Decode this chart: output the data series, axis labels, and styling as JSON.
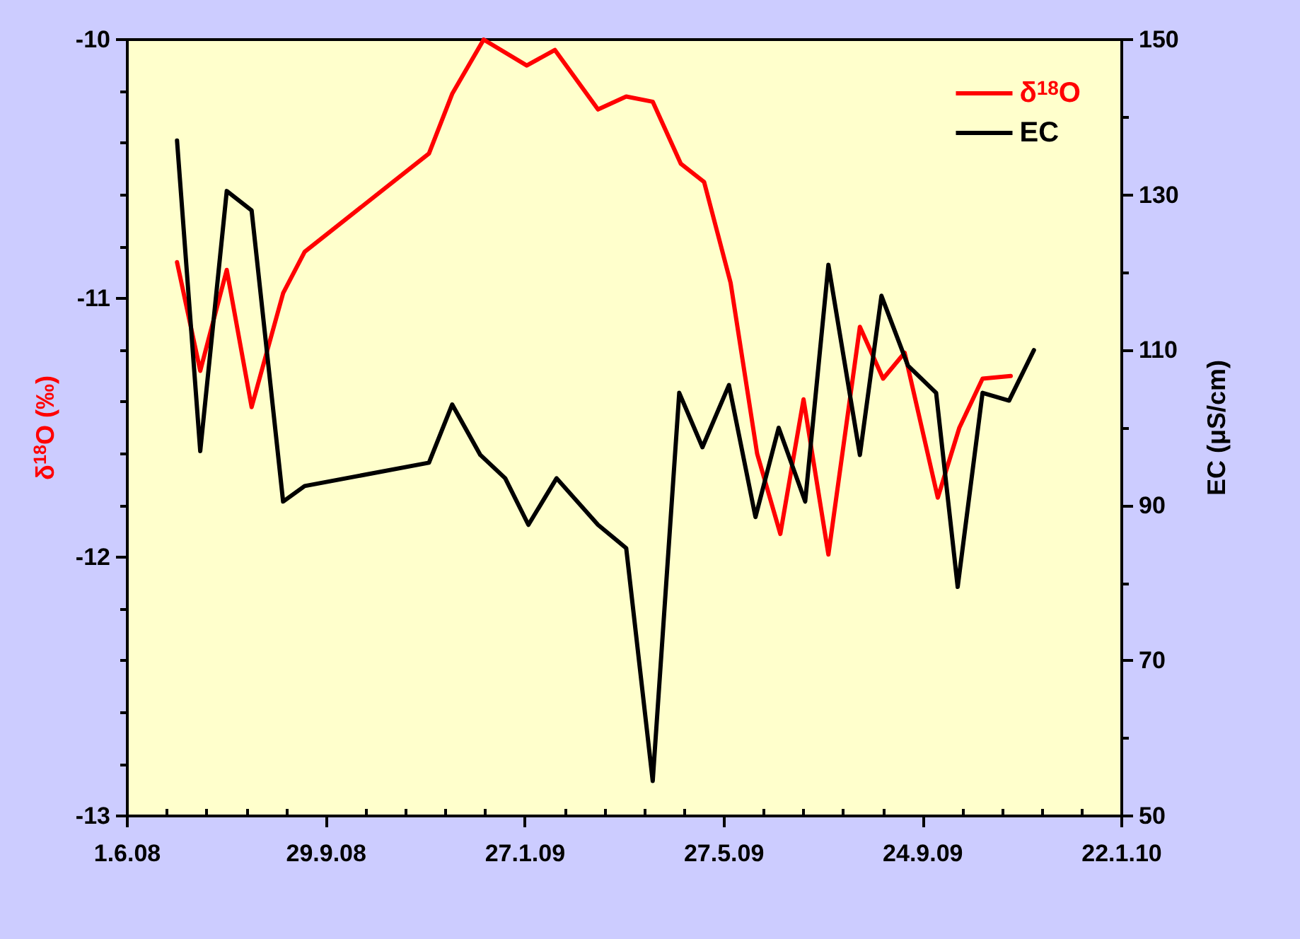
{
  "chart_data": {
    "type": "line",
    "ylabel": "δ$^{18}$O (‰)",
    "y2label": "EC (μS/cm)",
    "legend": "top right",
    "grid": false,
    "marker": "none",
    "line_style": "solid",
    "xlim": [
      "2008-06-01",
      "2010-01-22"
    ],
    "xticks": [
      {
        "value": "2008-06-01",
        "label": "1.6.08"
      },
      {
        "value": "2008-09-29",
        "label": "29.9.08"
      },
      {
        "value": "2009-01-27",
        "label": "27.1.09"
      },
      {
        "value": "2009-05-27",
        "label": "27.5.09"
      },
      {
        "value": "2009-09-24",
        "label": "24.9.09"
      },
      {
        "value": "2010-01-22",
        "label": "22.1.10"
      }
    ],
    "ylim": [
      -13,
      -10
    ],
    "yticks": [
      -13,
      -12,
      -11,
      -10
    ],
    "y2lim": [
      50,
      150
    ],
    "y2ticks": [
      50,
      70,
      90,
      110,
      130,
      150
    ],
    "series": [
      {
        "name": "δ$^{18}$O",
        "color": "#ff0000",
        "x": [
          "2008-07-01",
          "2008-07-15",
          "2008-07-31",
          "2008-08-15",
          "2008-09-03",
          "2008-09-16",
          "2008-11-30",
          "2008-12-14",
          "2009-01-02",
          "2009-01-28",
          "2009-02-14",
          "2009-03-12",
          "2009-03-29",
          "2009-04-14",
          "2009-05-01",
          "2009-05-15",
          "2009-05-31",
          "2009-06-16",
          "2009-06-30",
          "2009-07-14",
          "2009-07-29",
          "2009-08-17",
          "2009-08-31",
          "2009-09-13",
          "2009-10-03",
          "2009-10-16",
          "2009-10-30",
          "2009-11-16"
        ],
        "values": [
          -10.86,
          -11.28,
          -10.89,
          -11.42,
          -10.98,
          -10.82,
          -10.44,
          -10.21,
          -10.0,
          -10.1,
          -10.04,
          -10.27,
          -10.22,
          -10.24,
          -10.48,
          -10.55,
          -10.94,
          -11.6,
          -11.91,
          -11.39,
          -11.99,
          -11.11,
          -11.31,
          -11.21,
          -11.77,
          -11.5,
          -11.31,
          -11.3
        ]
      },
      {
        "name": "EC",
        "color": "#000000",
        "axis": "y2",
        "x": [
          "2008-07-01",
          "2008-07-15",
          "2008-07-31",
          "2008-08-15",
          "2008-09-03",
          "2008-09-16",
          "2008-11-30",
          "2008-12-14",
          "2008-12-31",
          "2009-01-15",
          "2009-01-29",
          "2009-02-15",
          "2009-03-12",
          "2009-03-29",
          "2009-04-14",
          "2009-04-30",
          "2009-05-14",
          "2009-05-30",
          "2009-06-15",
          "2009-06-29",
          "2009-07-15",
          "2009-07-29",
          "2009-08-17",
          "2009-08-30",
          "2009-09-15",
          "2009-10-02",
          "2009-10-15",
          "2009-10-30",
          "2009-11-15",
          "2009-11-30"
        ],
        "values": [
          137,
          97,
          130.5,
          128,
          90.5,
          92.5,
          95.5,
          103,
          96.5,
          93.5,
          87.5,
          93.5,
          87.5,
          84.5,
          54.5,
          104.5,
          97.5,
          105.5,
          88.5,
          100,
          90.5,
          121,
          96.5,
          117,
          108,
          104.5,
          79.5,
          104.5,
          103.5,
          110
        ]
      }
    ]
  }
}
